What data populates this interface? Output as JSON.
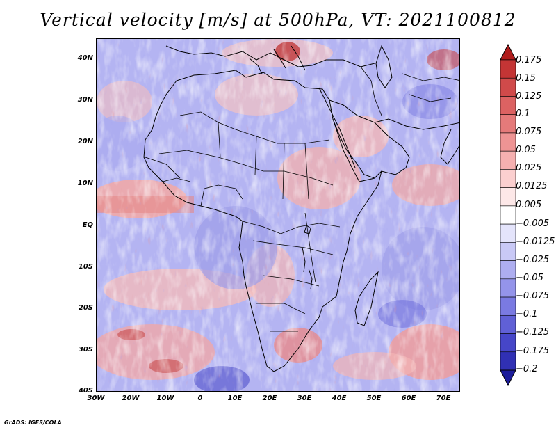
{
  "title": "Vertical velocity [m/s] at 500hPa, VT: 2021100812",
  "map": {
    "lat_labels": [
      "40N",
      "30N",
      "20N",
      "10N",
      "EQ",
      "10S",
      "20S",
      "30S",
      "40S"
    ],
    "lon_labels": [
      "30W",
      "20W",
      "10W",
      "0",
      "10E",
      "20E",
      "30E",
      "40E",
      "50E",
      "60E",
      "70E"
    ],
    "lat_range": [
      -40,
      44
    ],
    "lon_range": [
      -30,
      75
    ]
  },
  "colorbar": {
    "labels": [
      "0.175",
      "0.15",
      "0.125",
      "0.1",
      "0.075",
      "0.05",
      "0.025",
      "0.0125",
      "0.005",
      "−0.005",
      "−0.0125",
      "−0.025",
      "−0.05",
      "−0.075",
      "−0.1",
      "−0.125",
      "−0.175",
      "−0.2"
    ],
    "colors": [
      "#b01d1d",
      "#c43535",
      "#d04a4a",
      "#dc6262",
      "#e57a7a",
      "#ee9494",
      "#f5b0b0",
      "#fbcfcf",
      "#fde8e8",
      "#ffffff",
      "#e4e4fb",
      "#c9c9f6",
      "#aeaef0",
      "#9494ea",
      "#7a7ae2",
      "#6060d6",
      "#4646c8",
      "#3030b4",
      "#1c1c9a"
    ]
  },
  "credit": "GrADS: IGES/COLA"
}
